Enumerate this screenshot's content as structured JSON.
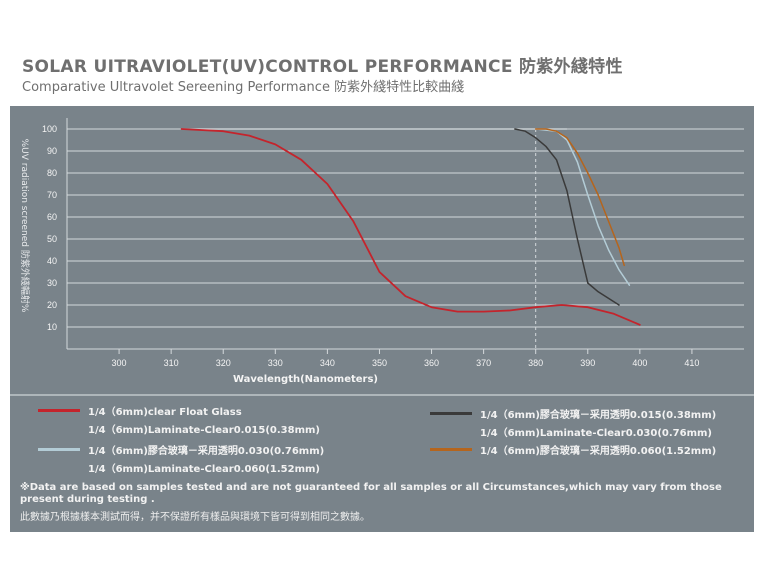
{
  "header": {
    "title": "SOLAR UITRAVIOLET(UV)CONTROL PERFORMANCE 防紫外綫特性",
    "subtitle": "Comparative Ultravolet Sereening Performance 防紫外綫特性比較曲綫"
  },
  "colors": {
    "panel": "#79838a",
    "grid": "#d4d9dc",
    "red": "#c4242c",
    "dark": "#3a3a3a",
    "light_blue": "#b3ccd6",
    "orange": "#b5651d"
  },
  "chart_data": {
    "type": "line",
    "xlabel": "Wavelength(Nanometers)",
    "ylabel": "%UV radiation screened 防紫外綫輻射%",
    "xlim": [
      290,
      420
    ],
    "ylim": [
      0,
      105
    ],
    "xticks": [
      300,
      310,
      320,
      330,
      340,
      350,
      360,
      370,
      380,
      390,
      400,
      410
    ],
    "yticks": [
      10,
      20,
      30,
      40,
      50,
      60,
      70,
      80,
      90,
      100
    ],
    "grid": true,
    "series": [
      {
        "name": "1/4（6mm)clear Float Glass",
        "color": "#c4242c",
        "x": [
          312,
          320,
          325,
          330,
          335,
          340,
          345,
          350,
          355,
          360,
          365,
          370,
          375,
          380,
          385,
          390,
          395,
          400
        ],
        "y": [
          100,
          99,
          97,
          93,
          86,
          75,
          58,
          35,
          24,
          19,
          17,
          17,
          17.5,
          19,
          20,
          19,
          16,
          11
        ]
      },
      {
        "name": "1/4（6mm)Laminate-Clear0.015(0.38mm)",
        "color": "#3a3a3a",
        "x": [
          376,
          378,
          380,
          382,
          384,
          386,
          388,
          390,
          392,
          394,
          396
        ],
        "y": [
          100,
          99,
          96,
          92,
          86,
          72,
          50,
          30,
          26,
          23,
          20
        ]
      },
      {
        "name": "1/4（6mm)Laminate-Clear0.030(0.76mm)",
        "color": "#b3ccd6",
        "x": [
          380,
          384,
          386,
          388,
          390,
          392,
          394,
          396,
          398
        ],
        "y": [
          100,
          99,
          95,
          85,
          70,
          56,
          45,
          36,
          29
        ]
      },
      {
        "name": "1/4（6mm)Laminate-Clear0.060(1.52mm)",
        "color": "#b5651d",
        "x": [
          380,
          382,
          384,
          386,
          388,
          390,
          392,
          394,
          396,
          397
        ],
        "y": [
          100,
          100,
          99,
          96,
          89,
          80,
          70,
          58,
          46,
          38
        ]
      }
    ]
  },
  "legend": [
    {
      "color": "#c4242c",
      "label": "1/4（6mm)clear Float Glass",
      "sub": "1/4（6mm)Laminate-Clear0.015(0.38mm)"
    },
    {
      "color": "#3a3a3a",
      "label": "1/4（6mm)膠合玻璃－采用透明0.015(0.38mm)",
      "sub": "1/4（6mm)Laminate-Clear0.030(0.76mm)"
    },
    {
      "color": "#b3ccd6",
      "label": "1/4（6mm)膠合玻璃－采用透明0.030(0.76mm)",
      "sub": "1/4（6mm)Laminate-Clear0.060(1.52mm)"
    },
    {
      "color": "#b5651d",
      "label": "1/4（6mm)膠合玻璃－采用透明0.060(1.52mm)"
    }
  ],
  "notes": {
    "en": "※Data are based on samples tested and are not guaranteed for all samples or all  Circumstances,which may vary from those present during testing .",
    "zh": "此數據乃根據樣本測試而得，并不保證所有樣品與環境下皆可得到相同之數據。"
  }
}
